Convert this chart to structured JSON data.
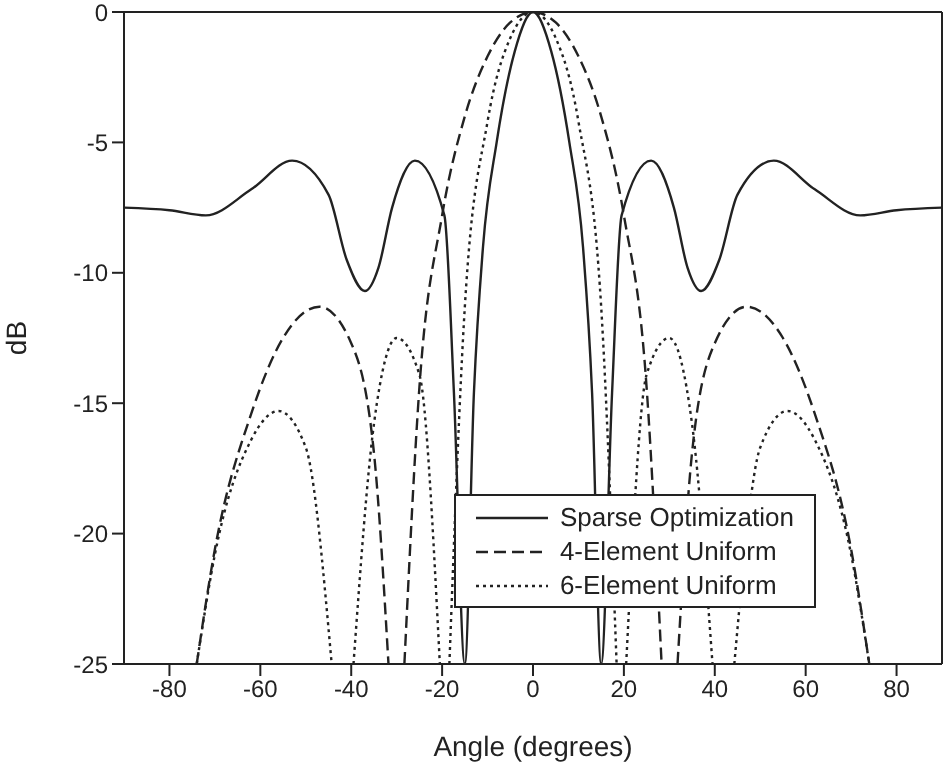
{
  "chart_data": {
    "type": "line",
    "xlabel": "Angle (degrees)",
    "ylabel": "dB",
    "xlim": [
      -90,
      90
    ],
    "xticks": [
      -80,
      -60,
      -40,
      -20,
      0,
      20,
      40,
      60,
      80
    ],
    "ylim": [
      -25,
      0
    ],
    "yticks": [
      -25,
      -20,
      -15,
      -10,
      -5,
      0
    ],
    "legend": "bottom right",
    "marker": "none",
    "series": [
      {
        "name": "Sparse Optimization",
        "color": "#222222",
        "line_style": "solid",
        "x": [
          -90,
          -80,
          -72,
          -62,
          -53,
          -45,
          -41,
          -37,
          -34,
          -31,
          -26,
          -19.5,
          -17.4,
          -15,
          -13,
          -11,
          -8,
          -4,
          0,
          4,
          8,
          11,
          13,
          15,
          17.4,
          19.5,
          26,
          31,
          34,
          37,
          41,
          45,
          53,
          62,
          72,
          80,
          90
        ],
        "values": [
          -7.5,
          -7.6,
          -7.8,
          -6.8,
          -5.7,
          -7,
          -9.5,
          -10.7,
          -9.8,
          -7.5,
          -5.7,
          -7.8,
          -14.6,
          -25,
          -14.6,
          -9,
          -5,
          -1.5,
          0,
          -1.5,
          -5,
          -9,
          -14.6,
          -25,
          -14.6,
          -7.8,
          -5.7,
          -7.5,
          -9.8,
          -10.7,
          -9.5,
          -7,
          -5.7,
          -6.8,
          -7.8,
          -7.6,
          -7.5
        ]
      },
      {
        "name": "4-Element Uniform",
        "color": "#222222",
        "line_style": "dashed",
        "x": [
          -74,
          -70,
          -62,
          -55,
          -47,
          -40,
          -35,
          -31.8,
          -30,
          -28.3,
          -25,
          -20,
          -15,
          -10,
          -5,
          0,
          5,
          10,
          15,
          20,
          25,
          28.3,
          30,
          31.8,
          35,
          40,
          47,
          55,
          62,
          70,
          74
        ],
        "values": [
          -25,
          -20.6,
          -15.4,
          -12.5,
          -11.3,
          -12.7,
          -16.9,
          -25,
          null,
          -25,
          -14.4,
          -7.8,
          -4,
          -1.7,
          -0.4,
          0,
          -0.4,
          -1.7,
          -4,
          -7.8,
          -14.4,
          -25,
          null,
          -25,
          -16.9,
          -12.7,
          -11.3,
          -12.5,
          -15.4,
          -20.6,
          -25
        ]
      },
      {
        "name": "6-Element Uniform",
        "color": "#222222",
        "line_style": "dotted",
        "x": [
          -74,
          -70,
          -62,
          -56,
          -50,
          -44.3,
          -42,
          -39.5,
          -35,
          -30,
          -25,
          -20.5,
          -19.5,
          -18.4,
          -15,
          -10,
          -5,
          0,
          5,
          10,
          15,
          18.4,
          19.5,
          20.5,
          25,
          30,
          35,
          39.5,
          42,
          44.3,
          50,
          56,
          62,
          70,
          74
        ],
        "values": [
          -25,
          -20.8,
          -16.4,
          -15.3,
          -16.7,
          -25,
          null,
          -25,
          -15.8,
          -12.5,
          -13.9,
          -25,
          null,
          -25,
          -11.3,
          -4.2,
          -1,
          0,
          -1,
          -4.2,
          -11.3,
          -25,
          null,
          -25,
          -13.9,
          -12.5,
          -15.8,
          -25,
          null,
          -25,
          -16.7,
          -15.3,
          -16.4,
          -20.8,
          -25
        ]
      }
    ]
  }
}
